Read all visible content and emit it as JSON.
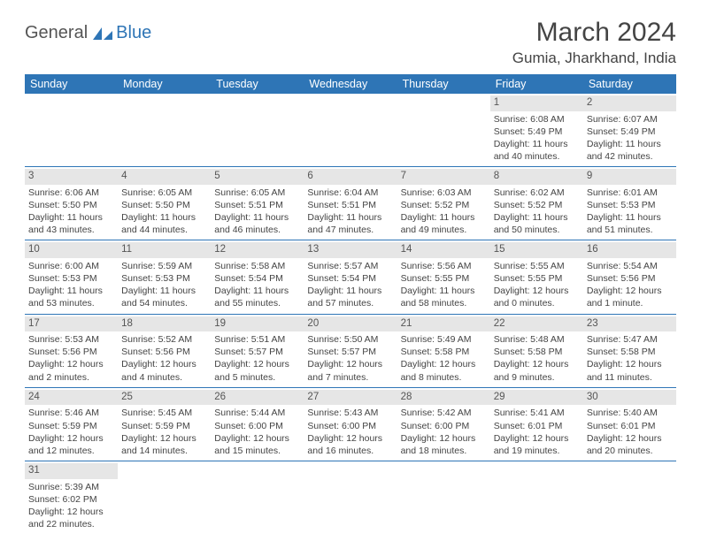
{
  "logo": {
    "general": "General",
    "blue": "Blue"
  },
  "title": "March 2024",
  "location": "Gumia, Jharkhand, India",
  "colors": {
    "header_bg": "#2e75b6",
    "header_text": "#ffffff",
    "daynum_bg": "#e6e6e6",
    "border": "#2e75b6",
    "body_text": "#444444",
    "page_bg": "#ffffff"
  },
  "typography": {
    "title_fontsize": 30,
    "location_fontsize": 17,
    "dayheader_fontsize": 12.5,
    "cell_fontsize": 10.5,
    "font_family": "Arial"
  },
  "day_headers": [
    "Sunday",
    "Monday",
    "Tuesday",
    "Wednesday",
    "Thursday",
    "Friday",
    "Saturday"
  ],
  "weeks": [
    [
      null,
      null,
      null,
      null,
      null,
      {
        "n": "1",
        "sunrise": "Sunrise: 6:08 AM",
        "sunset": "Sunset: 5:49 PM",
        "daylight": "Daylight: 11 hours and 40 minutes."
      },
      {
        "n": "2",
        "sunrise": "Sunrise: 6:07 AM",
        "sunset": "Sunset: 5:49 PM",
        "daylight": "Daylight: 11 hours and 42 minutes."
      }
    ],
    [
      {
        "n": "3",
        "sunrise": "Sunrise: 6:06 AM",
        "sunset": "Sunset: 5:50 PM",
        "daylight": "Daylight: 11 hours and 43 minutes."
      },
      {
        "n": "4",
        "sunrise": "Sunrise: 6:05 AM",
        "sunset": "Sunset: 5:50 PM",
        "daylight": "Daylight: 11 hours and 44 minutes."
      },
      {
        "n": "5",
        "sunrise": "Sunrise: 6:05 AM",
        "sunset": "Sunset: 5:51 PM",
        "daylight": "Daylight: 11 hours and 46 minutes."
      },
      {
        "n": "6",
        "sunrise": "Sunrise: 6:04 AM",
        "sunset": "Sunset: 5:51 PM",
        "daylight": "Daylight: 11 hours and 47 minutes."
      },
      {
        "n": "7",
        "sunrise": "Sunrise: 6:03 AM",
        "sunset": "Sunset: 5:52 PM",
        "daylight": "Daylight: 11 hours and 49 minutes."
      },
      {
        "n": "8",
        "sunrise": "Sunrise: 6:02 AM",
        "sunset": "Sunset: 5:52 PM",
        "daylight": "Daylight: 11 hours and 50 minutes."
      },
      {
        "n": "9",
        "sunrise": "Sunrise: 6:01 AM",
        "sunset": "Sunset: 5:53 PM",
        "daylight": "Daylight: 11 hours and 51 minutes."
      }
    ],
    [
      {
        "n": "10",
        "sunrise": "Sunrise: 6:00 AM",
        "sunset": "Sunset: 5:53 PM",
        "daylight": "Daylight: 11 hours and 53 minutes."
      },
      {
        "n": "11",
        "sunrise": "Sunrise: 5:59 AM",
        "sunset": "Sunset: 5:53 PM",
        "daylight": "Daylight: 11 hours and 54 minutes."
      },
      {
        "n": "12",
        "sunrise": "Sunrise: 5:58 AM",
        "sunset": "Sunset: 5:54 PM",
        "daylight": "Daylight: 11 hours and 55 minutes."
      },
      {
        "n": "13",
        "sunrise": "Sunrise: 5:57 AM",
        "sunset": "Sunset: 5:54 PM",
        "daylight": "Daylight: 11 hours and 57 minutes."
      },
      {
        "n": "14",
        "sunrise": "Sunrise: 5:56 AM",
        "sunset": "Sunset: 5:55 PM",
        "daylight": "Daylight: 11 hours and 58 minutes."
      },
      {
        "n": "15",
        "sunrise": "Sunrise: 5:55 AM",
        "sunset": "Sunset: 5:55 PM",
        "daylight": "Daylight: 12 hours and 0 minutes."
      },
      {
        "n": "16",
        "sunrise": "Sunrise: 5:54 AM",
        "sunset": "Sunset: 5:56 PM",
        "daylight": "Daylight: 12 hours and 1 minute."
      }
    ],
    [
      {
        "n": "17",
        "sunrise": "Sunrise: 5:53 AM",
        "sunset": "Sunset: 5:56 PM",
        "daylight": "Daylight: 12 hours and 2 minutes."
      },
      {
        "n": "18",
        "sunrise": "Sunrise: 5:52 AM",
        "sunset": "Sunset: 5:56 PM",
        "daylight": "Daylight: 12 hours and 4 minutes."
      },
      {
        "n": "19",
        "sunrise": "Sunrise: 5:51 AM",
        "sunset": "Sunset: 5:57 PM",
        "daylight": "Daylight: 12 hours and 5 minutes."
      },
      {
        "n": "20",
        "sunrise": "Sunrise: 5:50 AM",
        "sunset": "Sunset: 5:57 PM",
        "daylight": "Daylight: 12 hours and 7 minutes."
      },
      {
        "n": "21",
        "sunrise": "Sunrise: 5:49 AM",
        "sunset": "Sunset: 5:58 PM",
        "daylight": "Daylight: 12 hours and 8 minutes."
      },
      {
        "n": "22",
        "sunrise": "Sunrise: 5:48 AM",
        "sunset": "Sunset: 5:58 PM",
        "daylight": "Daylight: 12 hours and 9 minutes."
      },
      {
        "n": "23",
        "sunrise": "Sunrise: 5:47 AM",
        "sunset": "Sunset: 5:58 PM",
        "daylight": "Daylight: 12 hours and 11 minutes."
      }
    ],
    [
      {
        "n": "24",
        "sunrise": "Sunrise: 5:46 AM",
        "sunset": "Sunset: 5:59 PM",
        "daylight": "Daylight: 12 hours and 12 minutes."
      },
      {
        "n": "25",
        "sunrise": "Sunrise: 5:45 AM",
        "sunset": "Sunset: 5:59 PM",
        "daylight": "Daylight: 12 hours and 14 minutes."
      },
      {
        "n": "26",
        "sunrise": "Sunrise: 5:44 AM",
        "sunset": "Sunset: 6:00 PM",
        "daylight": "Daylight: 12 hours and 15 minutes."
      },
      {
        "n": "27",
        "sunrise": "Sunrise: 5:43 AM",
        "sunset": "Sunset: 6:00 PM",
        "daylight": "Daylight: 12 hours and 16 minutes."
      },
      {
        "n": "28",
        "sunrise": "Sunrise: 5:42 AM",
        "sunset": "Sunset: 6:00 PM",
        "daylight": "Daylight: 12 hours and 18 minutes."
      },
      {
        "n": "29",
        "sunrise": "Sunrise: 5:41 AM",
        "sunset": "Sunset: 6:01 PM",
        "daylight": "Daylight: 12 hours and 19 minutes."
      },
      {
        "n": "30",
        "sunrise": "Sunrise: 5:40 AM",
        "sunset": "Sunset: 6:01 PM",
        "daylight": "Daylight: 12 hours and 20 minutes."
      }
    ],
    [
      {
        "n": "31",
        "sunrise": "Sunrise: 5:39 AM",
        "sunset": "Sunset: 6:02 PM",
        "daylight": "Daylight: 12 hours and 22 minutes."
      },
      null,
      null,
      null,
      null,
      null,
      null
    ]
  ]
}
